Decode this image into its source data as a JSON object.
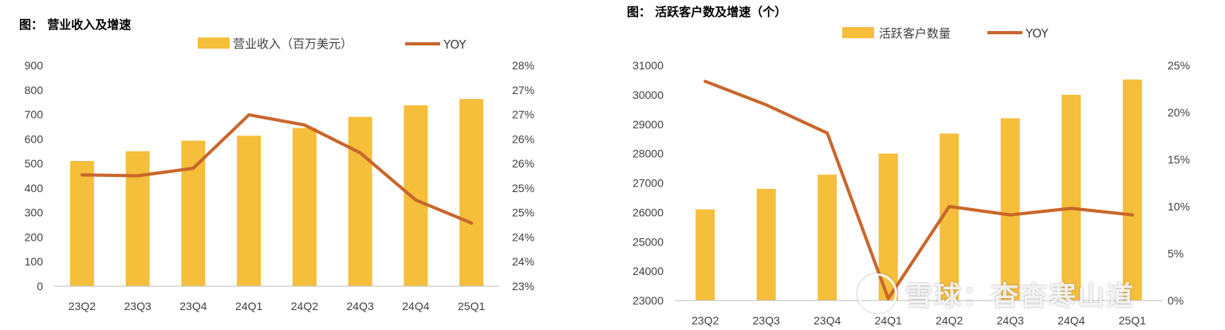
{
  "colors": {
    "bar": "#F5BE3B",
    "line": "#C9662B",
    "axis": "#BFBFBF"
  },
  "chart_data": [
    {
      "type": "bar",
      "title": "图： 营业收入及增速",
      "categories": [
        "23Q2",
        "23Q3",
        "23Q4",
        "24Q1",
        "24Q2",
        "24Q3",
        "24Q4",
        "25Q1"
      ],
      "series": [
        {
          "name": "营业收入（百万美元）",
          "type": "bar",
          "axis": "left",
          "values": [
            510,
            550,
            593,
            613,
            645,
            690,
            737,
            763
          ]
        },
        {
          "name": "YOY",
          "type": "line",
          "axis": "right",
          "values": [
            25.52,
            25.5,
            25.67,
            26.88,
            26.65,
            26.02,
            24.95,
            24.43
          ]
        }
      ],
      "left_axis": {
        "ylim": [
          0,
          900
        ],
        "ticks": [
          "0",
          "100",
          "200",
          "300",
          "400",
          "500",
          "600",
          "700",
          "800",
          "900"
        ]
      },
      "right_axis": {
        "ylim": [
          23,
          28
        ],
        "ticks": [
          "23%",
          "24%",
          "24%",
          "25%",
          "25%",
          "26%",
          "26%",
          "27%",
          "27%",
          "28%"
        ]
      },
      "legend": "top"
    },
    {
      "type": "bar",
      "title": "图： 活跃客户数及增速（个）",
      "categories": [
        "23Q2",
        "23Q3",
        "23Q4",
        "24Q1",
        "24Q2",
        "24Q3",
        "24Q4",
        "25Q1"
      ],
      "series": [
        {
          "name": "活跃客户数量",
          "type": "bar",
          "axis": "left",
          "values": [
            26100,
            26800,
            27280,
            28000,
            28680,
            29200,
            30000,
            30520
          ]
        },
        {
          "name": "YOY",
          "type": "line",
          "axis": "right",
          "values": [
            23.3,
            20.8,
            17.8,
            0.2,
            10.0,
            9.1,
            9.8,
            9.1
          ]
        }
      ],
      "left_axis": {
        "ylim": [
          23000,
          31000
        ],
        "ticks": [
          "23000",
          "24000",
          "25000",
          "26000",
          "27000",
          "28000",
          "29000",
          "30000",
          "31000"
        ]
      },
      "right_axis": {
        "ylim": [
          0,
          25
        ],
        "ticks": [
          "0%",
          "5%",
          "10%",
          "15%",
          "20%",
          "25%"
        ]
      },
      "legend": "top"
    }
  ],
  "watermark": {
    "text": "雪球：杳杳寒山道"
  }
}
